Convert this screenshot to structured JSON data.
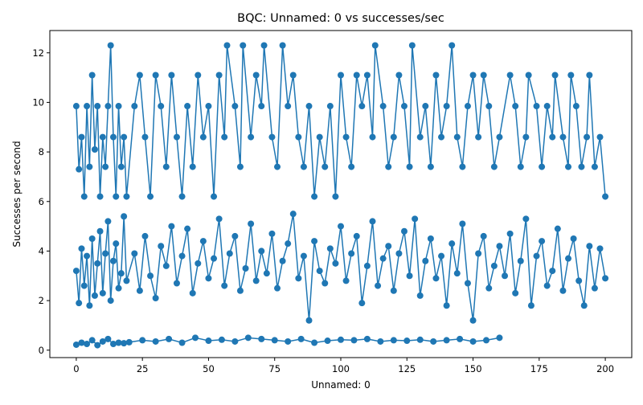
{
  "chart_data": {
    "type": "line",
    "title": "BQC: Unnamed: 0 vs successes/sec",
    "xlabel": "Unnamed: 0",
    "ylabel": "Successes per second",
    "xlim": [
      -10,
      210
    ],
    "ylim": [
      -0.3,
      12.9
    ],
    "xticks": [
      0,
      25,
      50,
      75,
      100,
      125,
      150,
      175,
      200
    ],
    "yticks": [
      0,
      2,
      4,
      6,
      8,
      10,
      12
    ],
    "grid": false,
    "legend": "none",
    "marker": "circle",
    "color": "#1f77b4",
    "series": [
      {
        "values": [
          [
            0,
            0.22
          ],
          [
            2,
            0.3
          ],
          [
            4,
            0.25
          ],
          [
            6,
            0.4
          ],
          [
            8,
            0.2
          ],
          [
            10,
            0.35
          ],
          [
            12,
            0.45
          ],
          [
            14,
            0.25
          ],
          [
            16,
            0.3
          ],
          [
            18,
            0.28
          ],
          [
            20,
            0.32
          ],
          [
            25,
            0.4
          ],
          [
            30,
            0.35
          ],
          [
            35,
            0.45
          ],
          [
            40,
            0.3
          ],
          [
            45,
            0.5
          ],
          [
            50,
            0.38
          ],
          [
            55,
            0.42
          ],
          [
            60,
            0.35
          ],
          [
            65,
            0.5
          ],
          [
            70,
            0.45
          ],
          [
            75,
            0.4
          ],
          [
            80,
            0.35
          ],
          [
            85,
            0.45
          ],
          [
            90,
            0.3
          ],
          [
            95,
            0.38
          ],
          [
            100,
            0.42
          ],
          [
            105,
            0.4
          ],
          [
            110,
            0.45
          ],
          [
            115,
            0.35
          ],
          [
            120,
            0.4
          ],
          [
            125,
            0.38
          ],
          [
            130,
            0.42
          ],
          [
            135,
            0.35
          ],
          [
            140,
            0.4
          ],
          [
            145,
            0.45
          ],
          [
            150,
            0.35
          ],
          [
            155,
            0.4
          ],
          [
            160,
            0.5
          ]
        ]
      },
      {
        "values": [
          [
            0,
            9.85
          ],
          [
            1,
            7.3
          ],
          [
            2,
            8.6
          ],
          [
            3,
            6.2
          ],
          [
            4,
            9.85
          ],
          [
            5,
            7.4
          ],
          [
            6,
            11.1
          ],
          [
            7,
            8.1
          ],
          [
            8,
            9.85
          ],
          [
            9,
            6.2
          ],
          [
            10,
            8.6
          ],
          [
            11,
            7.4
          ],
          [
            12,
            9.85
          ],
          [
            13,
            12.3
          ],
          [
            14,
            8.6
          ],
          [
            15,
            6.2
          ],
          [
            16,
            9.85
          ],
          [
            17,
            7.4
          ],
          [
            18,
            8.6
          ],
          [
            19,
            6.2
          ],
          [
            22,
            9.85
          ],
          [
            24,
            11.1
          ],
          [
            26,
            8.6
          ],
          [
            28,
            6.2
          ],
          [
            30,
            11.1
          ],
          [
            32,
            9.85
          ],
          [
            34,
            7.4
          ],
          [
            36,
            11.1
          ],
          [
            38,
            8.6
          ],
          [
            40,
            6.2
          ],
          [
            42,
            9.85
          ],
          [
            44,
            7.4
          ],
          [
            46,
            11.1
          ],
          [
            48,
            8.6
          ],
          [
            50,
            9.85
          ],
          [
            52,
            6.2
          ],
          [
            54,
            11.1
          ],
          [
            56,
            8.6
          ],
          [
            57,
            12.3
          ],
          [
            60,
            9.85
          ],
          [
            62,
            7.4
          ],
          [
            63,
            12.3
          ],
          [
            66,
            8.6
          ],
          [
            68,
            11.1
          ],
          [
            70,
            9.85
          ],
          [
            71,
            12.3
          ],
          [
            74,
            8.6
          ],
          [
            76,
            7.4
          ],
          [
            78,
            12.3
          ],
          [
            80,
            9.85
          ],
          [
            82,
            11.1
          ],
          [
            84,
            8.6
          ],
          [
            86,
            7.4
          ],
          [
            88,
            9.85
          ],
          [
            90,
            6.2
          ],
          [
            92,
            8.6
          ],
          [
            94,
            7.4
          ],
          [
            96,
            9.85
          ],
          [
            98,
            6.2
          ],
          [
            100,
            11.1
          ],
          [
            102,
            8.6
          ],
          [
            104,
            7.4
          ],
          [
            106,
            11.1
          ],
          [
            108,
            9.85
          ],
          [
            110,
            11.1
          ],
          [
            112,
            8.6
          ],
          [
            113,
            12.3
          ],
          [
            116,
            9.85
          ],
          [
            118,
            7.4
          ],
          [
            120,
            8.6
          ],
          [
            122,
            11.1
          ],
          [
            124,
            9.85
          ],
          [
            126,
            7.4
          ],
          [
            127,
            12.3
          ],
          [
            130,
            8.6
          ],
          [
            132,
            9.85
          ],
          [
            134,
            7.4
          ],
          [
            136,
            11.1
          ],
          [
            138,
            8.6
          ],
          [
            140,
            9.85
          ],
          [
            142,
            12.3
          ],
          [
            144,
            8.6
          ],
          [
            146,
            7.4
          ],
          [
            148,
            9.85
          ],
          [
            150,
            11.1
          ],
          [
            152,
            8.6
          ],
          [
            154,
            11.1
          ],
          [
            156,
            9.85
          ],
          [
            158,
            7.4
          ],
          [
            160,
            8.6
          ],
          [
            164,
            11.1
          ],
          [
            166,
            9.85
          ],
          [
            168,
            7.4
          ],
          [
            170,
            8.6
          ],
          [
            171,
            11.1
          ],
          [
            174,
            9.85
          ],
          [
            176,
            7.4
          ],
          [
            178,
            9.85
          ],
          [
            180,
            8.6
          ],
          [
            181,
            11.1
          ],
          [
            184,
            8.6
          ],
          [
            186,
            7.4
          ],
          [
            187,
            11.1
          ],
          [
            189,
            9.85
          ],
          [
            191,
            7.4
          ],
          [
            193,
            8.6
          ],
          [
            194,
            11.1
          ],
          [
            196,
            7.4
          ],
          [
            198,
            8.6
          ],
          [
            200,
            6.2
          ]
        ]
      },
      {
        "values": [
          [
            0,
            3.2
          ],
          [
            1,
            1.9
          ],
          [
            2,
            4.1
          ],
          [
            3,
            2.6
          ],
          [
            4,
            3.8
          ],
          [
            5,
            1.8
          ],
          [
            6,
            4.5
          ],
          [
            7,
            2.2
          ],
          [
            8,
            3.5
          ],
          [
            9,
            4.8
          ],
          [
            10,
            2.3
          ],
          [
            11,
            3.9
          ],
          [
            12,
            5.2
          ],
          [
            13,
            2.0
          ],
          [
            14,
            3.6
          ],
          [
            15,
            4.3
          ],
          [
            16,
            2.5
          ],
          [
            17,
            3.1
          ],
          [
            18,
            5.4
          ],
          [
            19,
            2.8
          ],
          [
            22,
            3.9
          ],
          [
            24,
            2.4
          ],
          [
            26,
            4.6
          ],
          [
            28,
            3.0
          ],
          [
            30,
            2.1
          ],
          [
            32,
            4.2
          ],
          [
            34,
            3.4
          ],
          [
            36,
            5.0
          ],
          [
            38,
            2.7
          ],
          [
            40,
            3.8
          ],
          [
            42,
            4.9
          ],
          [
            44,
            2.3
          ],
          [
            46,
            3.5
          ],
          [
            48,
            4.4
          ],
          [
            50,
            2.9
          ],
          [
            52,
            3.7
          ],
          [
            54,
            5.3
          ],
          [
            56,
            2.6
          ],
          [
            58,
            3.9
          ],
          [
            60,
            4.6
          ],
          [
            62,
            2.4
          ],
          [
            64,
            3.3
          ],
          [
            66,
            5.1
          ],
          [
            68,
            2.8
          ],
          [
            70,
            4.0
          ],
          [
            72,
            3.1
          ],
          [
            74,
            4.7
          ],
          [
            76,
            2.5
          ],
          [
            78,
            3.6
          ],
          [
            80,
            4.3
          ],
          [
            82,
            5.5
          ],
          [
            84,
            2.9
          ],
          [
            86,
            3.8
          ],
          [
            88,
            1.2
          ],
          [
            90,
            4.4
          ],
          [
            92,
            3.2
          ],
          [
            94,
            2.7
          ],
          [
            96,
            4.1
          ],
          [
            98,
            3.5
          ],
          [
            100,
            5.0
          ],
          [
            102,
            2.8
          ],
          [
            104,
            3.9
          ],
          [
            106,
            4.6
          ],
          [
            108,
            1.9
          ],
          [
            110,
            3.4
          ],
          [
            112,
            5.2
          ],
          [
            114,
            2.6
          ],
          [
            116,
            3.7
          ],
          [
            118,
            4.2
          ],
          [
            120,
            2.4
          ],
          [
            122,
            3.9
          ],
          [
            124,
            4.8
          ],
          [
            126,
            3.0
          ],
          [
            128,
            5.3
          ],
          [
            130,
            2.2
          ],
          [
            132,
            3.6
          ],
          [
            134,
            4.5
          ],
          [
            136,
            2.9
          ],
          [
            138,
            3.8
          ],
          [
            140,
            1.8
          ],
          [
            142,
            4.3
          ],
          [
            144,
            3.1
          ],
          [
            146,
            5.1
          ],
          [
            148,
            2.7
          ],
          [
            150,
            1.2
          ],
          [
            152,
            3.9
          ],
          [
            154,
            4.6
          ],
          [
            156,
            2.5
          ],
          [
            158,
            3.4
          ],
          [
            160,
            4.2
          ],
          [
            162,
            3.0
          ],
          [
            164,
            4.7
          ],
          [
            166,
            2.3
          ],
          [
            168,
            3.6
          ],
          [
            170,
            5.3
          ],
          [
            172,
            1.8
          ],
          [
            174,
            3.8
          ],
          [
            176,
            4.4
          ],
          [
            178,
            2.6
          ],
          [
            180,
            3.2
          ],
          [
            182,
            4.9
          ],
          [
            184,
            2.4
          ],
          [
            186,
            3.7
          ],
          [
            188,
            4.5
          ],
          [
            190,
            2.8
          ],
          [
            192,
            1.8
          ],
          [
            194,
            4.2
          ],
          [
            196,
            2.5
          ],
          [
            198,
            4.1
          ],
          [
            200,
            2.9
          ]
        ]
      }
    ]
  }
}
